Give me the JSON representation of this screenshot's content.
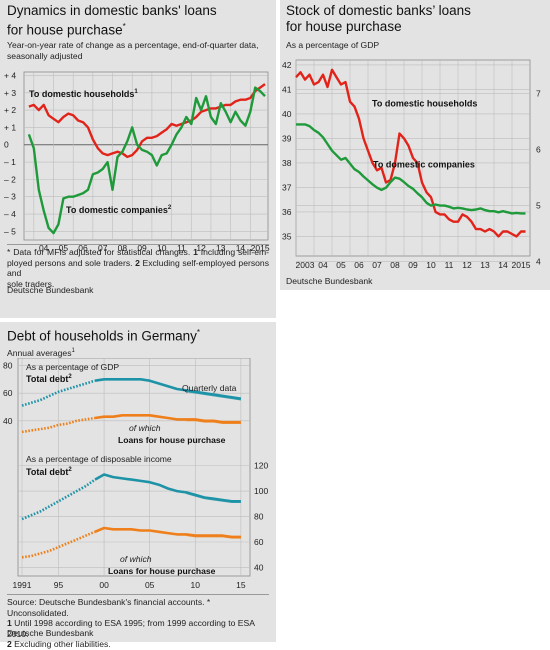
{
  "panel1": {
    "title": "Dynamics in domestic banks' loans\nfor house purchase",
    "title_mark": "*",
    "subtitle": "Year-on-year rate of change as a percentage, end-of-quarter data,\nseasonally adjusted",
    "notes": {
      "marker": "* ",
      "l1": "Data for MFIs adjusted for statistical changes. ",
      "n1": "1",
      "l2": " Including self-em-",
      "l3": "ployed persons and sole traders. ",
      "n2": "2",
      "l4": " Excluding self-employed persons and",
      "l5": "sole traders."
    },
    "source": "Deutsche Bundesbank"
  },
  "panel2": {
    "title": "Stock of domestic banks’ loans\nfor house purchase",
    "subtitle": "As a percentage of GDP",
    "source": "Deutsche Bundesbank"
  },
  "panel3": {
    "title": "Debt of households in Germany",
    "title_mark": "*",
    "subtitle": "Annual averages",
    "subtitle_mark": "1",
    "notes": {
      "l1": "Source: Deutsche Bundesbank's financial accounts. * Unconsolidated.",
      "n1": "1",
      "l2": " Until 1998 according to ESA 1995; from 1999 according to ESA 2010.",
      "n2": "2",
      "l3": " Excluding other liabilities."
    },
    "source": "Deutsche Bundesbank"
  },
  "colors": {
    "panel_bg": "#e3e3e3",
    "red": "#e2231a",
    "green": "#1f9a3a",
    "teal": "#1e93a8",
    "orange": "#ef7f1a"
  },
  "chart_data": [
    {
      "type": "line",
      "xlabel": "",
      "ylabel": "",
      "x_ticks": [
        "04",
        "05",
        "06",
        "07",
        "08",
        "09",
        "10",
        "11",
        "12",
        "13",
        "14",
        "2015"
      ],
      "y_ticks": [
        "+ 4",
        "+ 3",
        "+ 2",
        "+ 1",
        "0",
        "– 1",
        "– 2",
        "– 3",
        "– 4",
        "– 5"
      ],
      "ylim": [
        -5.5,
        4.2
      ],
      "xlim": [
        2003.5,
        2015.9
      ],
      "grid": true,
      "series": [
        {
          "name": "To domestic households",
          "name_mark": "1",
          "color": "#e2231a",
          "x": [
            2003.75,
            2004.0,
            2004.25,
            2004.5,
            2004.75,
            2005.0,
            2005.25,
            2005.5,
            2005.75,
            2006.0,
            2006.25,
            2006.5,
            2006.75,
            2007.0,
            2007.25,
            2007.5,
            2007.75,
            2008.0,
            2008.25,
            2008.5,
            2008.75,
            2009.0,
            2009.25,
            2009.5,
            2009.75,
            2010.0,
            2010.25,
            2010.5,
            2010.75,
            2011.0,
            2011.25,
            2011.5,
            2011.75,
            2012.0,
            2012.25,
            2012.5,
            2012.75,
            2013.0,
            2013.25,
            2013.5,
            2013.75,
            2014.0,
            2014.25,
            2014.5,
            2014.75,
            2015.0,
            2015.25,
            2015.5,
            2015.75
          ],
          "y": [
            2.2,
            2.3,
            2.0,
            2.3,
            1.7,
            1.5,
            1.3,
            1.6,
            1.8,
            1.7,
            1.4,
            1.3,
            1.0,
            0.3,
            -0.2,
            -0.5,
            -0.6,
            -0.5,
            -0.4,
            -0.5,
            -0.7,
            -0.6,
            -0.3,
            0.2,
            0.4,
            0.4,
            0.5,
            0.7,
            0.9,
            1.2,
            1.1,
            1.2,
            1.3,
            1.4,
            1.6,
            1.9,
            2.0,
            2.1,
            2.1,
            2.2,
            2.3,
            2.3,
            2.5,
            2.6,
            2.6,
            2.7,
            3.1,
            3.3,
            3.5
          ]
        },
        {
          "name": "To domestic companies",
          "name_mark": "2",
          "color": "#1f9a3a",
          "x": [
            2003.75,
            2004.0,
            2004.25,
            2004.5,
            2004.75,
            2005.0,
            2005.25,
            2005.5,
            2005.75,
            2006.0,
            2006.25,
            2006.5,
            2006.75,
            2007.0,
            2007.25,
            2007.5,
            2007.75,
            2008.0,
            2008.25,
            2008.5,
            2008.75,
            2009.0,
            2009.25,
            2009.5,
            2009.75,
            2010.0,
            2010.25,
            2010.5,
            2010.75,
            2011.0,
            2011.25,
            2011.5,
            2011.75,
            2012.0,
            2012.25,
            2012.5,
            2012.75,
            2013.0,
            2013.25,
            2013.5,
            2013.75,
            2014.0,
            2014.25,
            2014.5,
            2014.75,
            2015.0,
            2015.25,
            2015.5,
            2015.75
          ],
          "y": [
            0.6,
            -0.2,
            -2.6,
            -3.8,
            -4.8,
            -5.1,
            -4.6,
            -3.1,
            -3.0,
            -3.0,
            -2.9,
            -2.8,
            -2.6,
            -1.7,
            -1.6,
            -1.4,
            -1.0,
            -2.6,
            -0.7,
            -0.4,
            0.2,
            1.0,
            0.0,
            -0.3,
            -0.4,
            -0.6,
            -1.2,
            -0.6,
            -0.5,
            0.0,
            0.6,
            1.0,
            1.6,
            1.2,
            2.7,
            2.0,
            2.8,
            1.6,
            1.2,
            2.4,
            1.9,
            1.3,
            1.9,
            1.4,
            1.1,
            1.9,
            3.3,
            3.1,
            2.8
          ]
        }
      ]
    },
    {
      "type": "line",
      "xlabel": "",
      "ylabel": "",
      "x_ticks": [
        "2003",
        "04",
        "05",
        "06",
        "07",
        "08",
        "09",
        "10",
        "11",
        "12",
        "13",
        "14",
        "2015"
      ],
      "y_ticks_left": [
        "42",
        "41",
        "40",
        "39",
        "38",
        "37",
        "36",
        "35"
      ],
      "y_ticks_right": [
        "7",
        "6",
        "5",
        "4"
      ],
      "ylim_left": [
        34.2,
        42.2
      ],
      "ylim_right": [
        4.1,
        7.6
      ],
      "xlim": [
        2003.0,
        2016.0
      ],
      "grid": true,
      "series": [
        {
          "name": "To domestic households",
          "axis": "left",
          "color": "#e2231a",
          "x": [
            2003.0,
            2003.25,
            2003.5,
            2003.75,
            2004.0,
            2004.25,
            2004.5,
            2004.75,
            2005.0,
            2005.25,
            2005.5,
            2005.75,
            2006.0,
            2006.25,
            2006.5,
            2006.75,
            2007.0,
            2007.25,
            2007.5,
            2007.75,
            2008.0,
            2008.25,
            2008.5,
            2008.75,
            2009.0,
            2009.25,
            2009.5,
            2009.75,
            2010.0,
            2010.25,
            2010.5,
            2010.75,
            2011.0,
            2011.25,
            2011.5,
            2011.75,
            2012.0,
            2012.25,
            2012.5,
            2012.75,
            2013.0,
            2013.25,
            2013.5,
            2013.75,
            2014.0,
            2014.25,
            2014.5,
            2014.75,
            2015.0,
            2015.25,
            2015.5,
            2015.75
          ],
          "y": [
            41.5,
            41.7,
            41.4,
            41.6,
            41.2,
            41.3,
            41.6,
            41.1,
            41.8,
            41.5,
            41.2,
            41.3,
            40.5,
            40.3,
            39.8,
            39.0,
            38.5,
            38.0,
            37.7,
            37.8,
            37.2,
            37.3,
            38.0,
            39.2,
            39.0,
            38.7,
            38.2,
            38.0,
            37.2,
            36.8,
            36.6,
            36.0,
            35.9,
            35.9,
            35.7,
            35.6,
            35.6,
            35.9,
            35.8,
            35.6,
            35.3,
            35.3,
            35.2,
            35.3,
            35.2,
            35.0,
            35.2,
            35.2,
            35.1,
            35.0,
            35.2,
            35.2
          ]
        },
        {
          "name": "To domestic companies",
          "axis": "right",
          "color": "#1f9a3a",
          "x": [
            2003.0,
            2003.25,
            2003.5,
            2003.75,
            2004.0,
            2004.25,
            2004.5,
            2004.75,
            2005.0,
            2005.25,
            2005.5,
            2005.75,
            2006.0,
            2006.25,
            2006.5,
            2006.75,
            2007.0,
            2007.25,
            2007.5,
            2007.75,
            2008.0,
            2008.25,
            2008.5,
            2008.75,
            2009.0,
            2009.25,
            2009.5,
            2009.75,
            2010.0,
            2010.25,
            2010.5,
            2010.75,
            2011.0,
            2011.25,
            2011.5,
            2011.75,
            2012.0,
            2012.25,
            2012.5,
            2012.75,
            2013.0,
            2013.25,
            2013.5,
            2013.75,
            2014.0,
            2014.25,
            2014.5,
            2014.75,
            2015.0,
            2015.25,
            2015.5,
            2015.75
          ],
          "y": [
            6.45,
            6.45,
            6.45,
            6.42,
            6.35,
            6.3,
            6.22,
            6.1,
            5.98,
            5.9,
            5.82,
            5.85,
            5.75,
            5.65,
            5.6,
            5.52,
            5.45,
            5.38,
            5.32,
            5.28,
            5.32,
            5.42,
            5.5,
            5.48,
            5.42,
            5.35,
            5.3,
            5.22,
            5.15,
            5.05,
            5.0,
            5.02,
            5.0,
            5.0,
            4.98,
            4.95,
            4.96,
            4.95,
            4.93,
            4.92,
            4.93,
            4.95,
            4.92,
            4.9,
            4.9,
            4.88,
            4.9,
            4.88,
            4.86,
            4.87,
            4.86,
            4.86
          ]
        }
      ]
    },
    {
      "type": "line",
      "title": "As a percentage of GDP",
      "xlabel": "",
      "ylabel": "",
      "x_ticks": [
        "1991",
        "95",
        "00",
        "05",
        "10",
        "15"
      ],
      "y_ticks": [
        "80",
        "60",
        "40"
      ],
      "ylim": [
        29,
        84
      ],
      "xlim": [
        1991,
        2016
      ],
      "annotations": [
        "Quarterly data"
      ],
      "series": [
        {
          "name": "Total debt",
          "name_mark": "2",
          "color": "#1e93a8",
          "x": [
            1991,
            1992,
            1993,
            1994,
            1995,
            1996,
            1997,
            1998,
            1999,
            2000,
            2001,
            2002,
            2003,
            2004,
            2005,
            2006,
            2007,
            2008,
            2009,
            2010,
            2011,
            2012,
            2013,
            2014,
            2015
          ],
          "y": [
            51,
            53,
            55,
            58,
            61,
            63,
            65,
            67,
            69,
            70,
            70,
            70,
            70,
            70,
            69,
            67,
            65,
            63,
            62,
            61,
            60,
            59,
            58,
            57,
            56
          ]
        },
        {
          "name": "of which Loans for house purchase",
          "color": "#ef7f1a",
          "x": [
            1991,
            1992,
            1993,
            1994,
            1995,
            1996,
            1997,
            1998,
            1999,
            2000,
            2001,
            2002,
            2003,
            2004,
            2005,
            2006,
            2007,
            2008,
            2009,
            2010,
            2011,
            2012,
            2013,
            2014,
            2015
          ],
          "y": [
            32,
            33,
            34,
            35,
            37,
            38,
            40,
            41,
            42,
            43,
            43,
            44,
            44,
            44,
            44,
            43,
            42,
            41,
            41,
            41,
            40,
            40,
            39,
            39,
            39
          ]
        }
      ]
    },
    {
      "type": "line",
      "title": "As a percentage of disposable income",
      "xlabel": "",
      "ylabel": "",
      "x_ticks": [
        "1991",
        "95",
        "00",
        "05",
        "10",
        "15"
      ],
      "y_ticks": [
        "120",
        "100",
        "80",
        "60",
        "40"
      ],
      "ylim": [
        38,
        126
      ],
      "xlim": [
        1991,
        2016
      ],
      "series": [
        {
          "name": "Total debt",
          "name_mark": "2",
          "color": "#1e93a8",
          "x": [
            1991,
            1992,
            1993,
            1994,
            1995,
            1996,
            1997,
            1998,
            1999,
            2000,
            2001,
            2002,
            2003,
            2004,
            2005,
            2006,
            2007,
            2008,
            2009,
            2010,
            2011,
            2012,
            2013,
            2014,
            2015
          ],
          "y": [
            78,
            81,
            84,
            88,
            92,
            96,
            100,
            104,
            109,
            113,
            111,
            110,
            109,
            108,
            107,
            105,
            102,
            100,
            99,
            97,
            95,
            94,
            93,
            92,
            92
          ]
        },
        {
          "name": "of which Loans for house purchase",
          "color": "#ef7f1a",
          "x": [
            1991,
            1992,
            1993,
            1994,
            1995,
            1996,
            1997,
            1998,
            1999,
            2000,
            2001,
            2002,
            2003,
            2004,
            2005,
            2006,
            2007,
            2008,
            2009,
            2010,
            2011,
            2012,
            2013,
            2014,
            2015
          ],
          "y": [
            48,
            49,
            51,
            53,
            56,
            59,
            62,
            65,
            68,
            71,
            70,
            70,
            70,
            69,
            69,
            68,
            67,
            66,
            66,
            65,
            65,
            65,
            65,
            64,
            64
          ]
        }
      ]
    }
  ]
}
